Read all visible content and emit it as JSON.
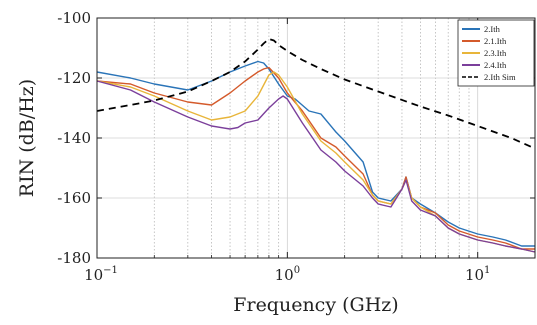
{
  "chart_data": {
    "type": "line",
    "xlabel": "Frequency (GHz)",
    "ylabel": "RIN (dB/Hz)",
    "xscale": "log",
    "xlim": [
      0.1,
      20
    ],
    "ylim": [
      -180,
      -100
    ],
    "xticks": [
      {
        "value": 0.1,
        "base": "10",
        "exp": "−1"
      },
      {
        "value": 1,
        "base": "10",
        "exp": "0"
      },
      {
        "value": 10,
        "base": "10",
        "exp": "1"
      }
    ],
    "yticks": [
      -100,
      -120,
      -140,
      -160,
      -180
    ],
    "grid": "on (log minor gridlines dotted)",
    "legend_position": "top-right",
    "series": [
      {
        "name": "2.Ith",
        "color": "#2a74b8",
        "style": "solid",
        "x": [
          0.1,
          0.15,
          0.2,
          0.3,
          0.4,
          0.5,
          0.6,
          0.7,
          0.75,
          0.8,
          0.9,
          1.0,
          1.1,
          1.3,
          1.5,
          1.8,
          2.0,
          2.5,
          2.8,
          3.0,
          3.5,
          4.0,
          4.2,
          4.5,
          5.0,
          6.0,
          7.0,
          8.0,
          10.0,
          12.0,
          14.0,
          17.0,
          20.0
        ],
        "y": [
          -118,
          -120,
          -122,
          -124,
          -121,
          -118,
          -116,
          -114.5,
          -115,
          -117,
          -122,
          -126,
          -127,
          -131,
          -132,
          -138,
          -141,
          -148,
          -158,
          -160,
          -161,
          -157,
          -153,
          -160,
          -162,
          -165,
          -168,
          -170,
          -172,
          -173,
          -174,
          -176,
          -176
        ]
      },
      {
        "name": "2.1.Ith",
        "color": "#d45a2b",
        "style": "solid",
        "x": [
          0.1,
          0.15,
          0.2,
          0.3,
          0.4,
          0.5,
          0.6,
          0.7,
          0.75,
          0.8,
          0.9,
          1.0,
          1.2,
          1.5,
          1.8,
          2.0,
          2.5,
          2.8,
          3.0,
          3.5,
          4.0,
          4.2,
          4.5,
          5.0,
          6.0,
          7.0,
          8.0,
          10.0,
          12.0,
          14.0,
          17.0,
          20.0
        ],
        "y": [
          -121,
          -122,
          -125,
          -128,
          -129,
          -125,
          -121,
          -118,
          -117,
          -116.5,
          -120,
          -125,
          -131,
          -140,
          -143,
          -146,
          -152,
          -159,
          -161,
          -162,
          -157,
          -153,
          -160,
          -163,
          -165,
          -169,
          -171,
          -173,
          -174,
          -175,
          -177,
          -177
        ]
      },
      {
        "name": "2.3.Ith",
        "color": "#e8b53a",
        "style": "solid",
        "x": [
          0.1,
          0.15,
          0.2,
          0.3,
          0.4,
          0.5,
          0.6,
          0.7,
          0.8,
          0.85,
          0.9,
          1.0,
          1.2,
          1.5,
          1.8,
          2.0,
          2.5,
          2.8,
          3.0,
          3.5,
          4.0,
          4.2,
          4.5,
          5.0,
          6.0,
          7.0,
          8.0,
          10.0,
          12.0,
          14.0,
          17.0,
          20.0
        ],
        "y": [
          -121,
          -123,
          -126,
          -131,
          -134,
          -133,
          -131,
          -126,
          -119,
          -118,
          -119,
          -123,
          -132,
          -141,
          -145,
          -148,
          -154,
          -159,
          -161,
          -162,
          -157,
          -154,
          -160,
          -163,
          -166,
          -170,
          -172,
          -174,
          -175,
          -176,
          -177,
          -178
        ]
      },
      {
        "name": "2.4.Ith",
        "color": "#7b3f9b",
        "style": "solid",
        "x": [
          0.1,
          0.15,
          0.2,
          0.3,
          0.4,
          0.5,
          0.55,
          0.6,
          0.7,
          0.8,
          0.9,
          0.95,
          1.0,
          1.2,
          1.5,
          1.8,
          2.0,
          2.5,
          2.8,
          3.0,
          3.5,
          4.0,
          4.2,
          4.5,
          5.0,
          6.0,
          7.0,
          8.0,
          10.0,
          12.0,
          14.0,
          17.0,
          20.0
        ],
        "y": [
          -121,
          -124,
          -128,
          -133,
          -136,
          -137,
          -136.5,
          -135,
          -134,
          -130,
          -127,
          -126,
          -127,
          -135,
          -144,
          -148,
          -151,
          -156,
          -160,
          -162,
          -163,
          -157,
          -154,
          -161,
          -164,
          -166,
          -170,
          -172,
          -174,
          -175,
          -176,
          -177,
          -178
        ]
      },
      {
        "name": "2.Ith Sim",
        "color": "#000000",
        "style": "dashed",
        "x": [
          0.1,
          0.15,
          0.2,
          0.3,
          0.4,
          0.5,
          0.6,
          0.7,
          0.75,
          0.8,
          0.85,
          0.9,
          1.0,
          1.2,
          1.5,
          2.0,
          3.0,
          5.0,
          7.0,
          10.0,
          15.0,
          20.0
        ],
        "y": [
          -131,
          -129,
          -127.5,
          -124.5,
          -121,
          -118,
          -114.5,
          -110.5,
          -108.5,
          -107,
          -107.5,
          -109,
          -111,
          -114,
          -117,
          -120.5,
          -124.5,
          -129.5,
          -132.5,
          -136,
          -140,
          -143.5
        ]
      }
    ]
  }
}
